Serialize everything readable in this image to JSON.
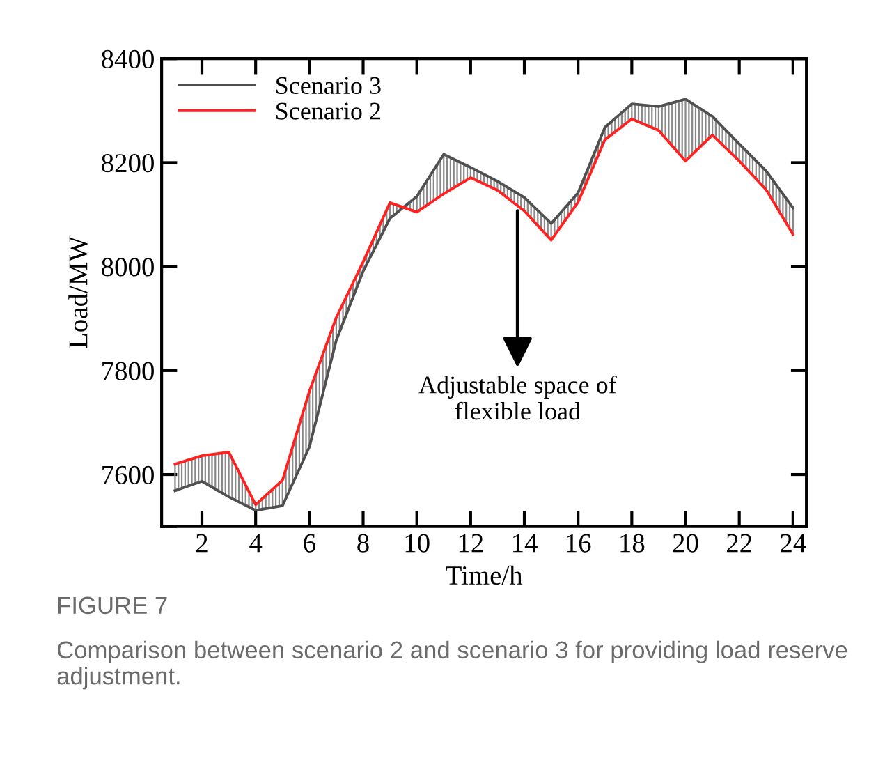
{
  "chart_data": {
    "type": "line",
    "xlabel": "Time/h",
    "ylabel": "Load/MW",
    "x": [
      1,
      2,
      3,
      4,
      5,
      6,
      7,
      8,
      9,
      10,
      11,
      12,
      13,
      14,
      15,
      16,
      17,
      18,
      19,
      20,
      21,
      22,
      23,
      24
    ],
    "series": [
      {
        "name": "Scenario 3",
        "color": "#505050",
        "values": [
          7569,
          7587,
          7557,
          7531,
          7540,
          7653,
          7858,
          7991,
          8093,
          8135,
          8216,
          8191,
          8164,
          8133,
          8083,
          8142,
          8268,
          8313,
          8308,
          8322,
          8289,
          8236,
          8184,
          8113
        ]
      },
      {
        "name": "Scenario 2",
        "color": "#ff2020",
        "values": [
          7620,
          7636,
          7643,
          7542,
          7589,
          7760,
          7902,
          8009,
          8123,
          8105,
          8140,
          8171,
          8147,
          8107,
          8051,
          8124,
          8244,
          8284,
          8262,
          8203,
          8253,
          8203,
          8148,
          8062
        ]
      }
    ],
    "xlim": [
      0.5,
      24.5
    ],
    "xticks": [
      2,
      4,
      6,
      8,
      10,
      12,
      14,
      16,
      18,
      20,
      22,
      24
    ],
    "ylim": [
      7500,
      8400
    ],
    "yticks": [
      {
        "value": 7500,
        "label": null
      },
      7600,
      7800,
      8000,
      8200,
      8400
    ],
    "grid": false,
    "legend": "top left",
    "marker": "none",
    "line_style": "solid",
    "annotations": [
      {
        "text": "Adjustable space of\nflexible load",
        "x": 13.75,
        "y": 8107
      },
      "FIGURE 7",
      "Comparison between scenario 2 and scenario 3 for providing load reserve adjustment."
    ]
  }
}
